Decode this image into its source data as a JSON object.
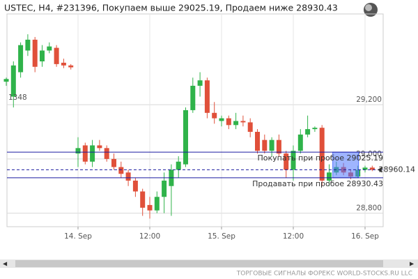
{
  "chart_data": {
    "type": "candlestick",
    "title": "USTEC, H4, #231396, Покупаем выше 29025.19, Продаем ниже 28930.43",
    "footer": "ТОРГОВЫЕ СИГНАЛЫ ФОРЕКС WORLD-STOCKS.RU LLC",
    "annotation": "1348",
    "categories": [
      null,
      null,
      null,
      null,
      null,
      null,
      null,
      null,
      null,
      null,
      "14. Sep",
      null,
      null,
      null,
      null,
      null,
      null,
      null,
      null,
      null,
      "12:00",
      null,
      null,
      null,
      null,
      null,
      null,
      null,
      null,
      null,
      "15. Sep",
      null,
      null,
      null,
      null,
      null,
      null,
      null,
      null,
      null,
      "12:00",
      null,
      null,
      null,
      null,
      null,
      null,
      null,
      null,
      null,
      "16. Sep",
      null
    ],
    "open": [
      29285,
      29230,
      29320,
      29400,
      29440,
      29360,
      29400,
      29410,
      29355,
      29345,
      29020,
      29050,
      28990,
      29050,
      29040,
      29000,
      28970,
      28950,
      28920,
      28880,
      28830,
      28810,
      28860,
      28900,
      28960,
      28980,
      29180,
      29270,
      29290,
      29170,
      29140,
      29150,
      29125,
      29140,
      29135,
      29100,
      29070,
      29030,
      29070,
      29020,
      28960,
      29030,
      29090,
      29110,
      29115,
      28920,
      28950,
      28970,
      28950,
      28935,
      28960,
      28968
    ],
    "high": [
      29300,
      29360,
      29430,
      29460,
      29450,
      29420,
      29430,
      29420,
      29370,
      29350,
      29080,
      29060,
      29070,
      29070,
      29050,
      29020,
      28990,
      28960,
      28930,
      28890,
      28860,
      28880,
      28950,
      28980,
      29010,
      29190,
      29300,
      29320,
      29300,
      29210,
      29160,
      29160,
      29170,
      29160,
      29150,
      29110,
      29090,
      29080,
      29090,
      29030,
      29050,
      29110,
      29160,
      29120,
      29125,
      28980,
      28990,
      28985,
      28960,
      28975,
      28975,
      28975
    ],
    "low": [
      29270,
      29190,
      29300,
      29380,
      29320,
      29340,
      29390,
      29340,
      29335,
      29330,
      28970,
      28980,
      28970,
      29030,
      28990,
      28960,
      28930,
      28900,
      28860,
      28790,
      28780,
      28800,
      28800,
      28790,
      28930,
      28970,
      29170,
      29230,
      29150,
      29130,
      29120,
      29110,
      29110,
      29120,
      29080,
      29020,
      29020,
      29010,
      29010,
      28930,
      28920,
      29020,
      29080,
      29100,
      28900,
      28900,
      28940,
      28940,
      28925,
      28930,
      28950,
      28955
    ],
    "close": [
      29295,
      29345,
      29420,
      29440,
      29340,
      29400,
      29415,
      29350,
      29345,
      29338,
      29040,
      28990,
      29050,
      29040,
      29000,
      28970,
      28945,
      28920,
      28880,
      28820,
      28810,
      28860,
      28920,
      28960,
      28990,
      29180,
      29270,
      29290,
      29170,
      29150,
      29150,
      29125,
      29140,
      29135,
      29100,
      29030,
      29030,
      29070,
      29020,
      28960,
      29030,
      29090,
      29110,
      29115,
      28920,
      28950,
      28970,
      28950,
      28935,
      28960,
      28968,
      28960
    ],
    "up_color": "#2fb34a",
    "down_color": "#e0503a",
    "ylim": [
      28750,
      29535
    ],
    "yticks": [
      {
        "value": 28800,
        "label": "28,800"
      },
      {
        "value": 29000,
        "label": "29,000"
      },
      {
        "value": 29200,
        "label": "29,200"
      }
    ],
    "grid": true,
    "levels": [
      {
        "value": 29025.19,
        "label": "Покупать при пробое 29025.19",
        "color": "#1a1aa0"
      },
      {
        "value": 28930.43,
        "label": "Продавать при пробое 28930.43",
        "color": "#1a1aa0"
      }
    ],
    "current_price": {
      "value": 28960.14,
      "label": "28960.14",
      "color": "#1a1aa0"
    }
  }
}
